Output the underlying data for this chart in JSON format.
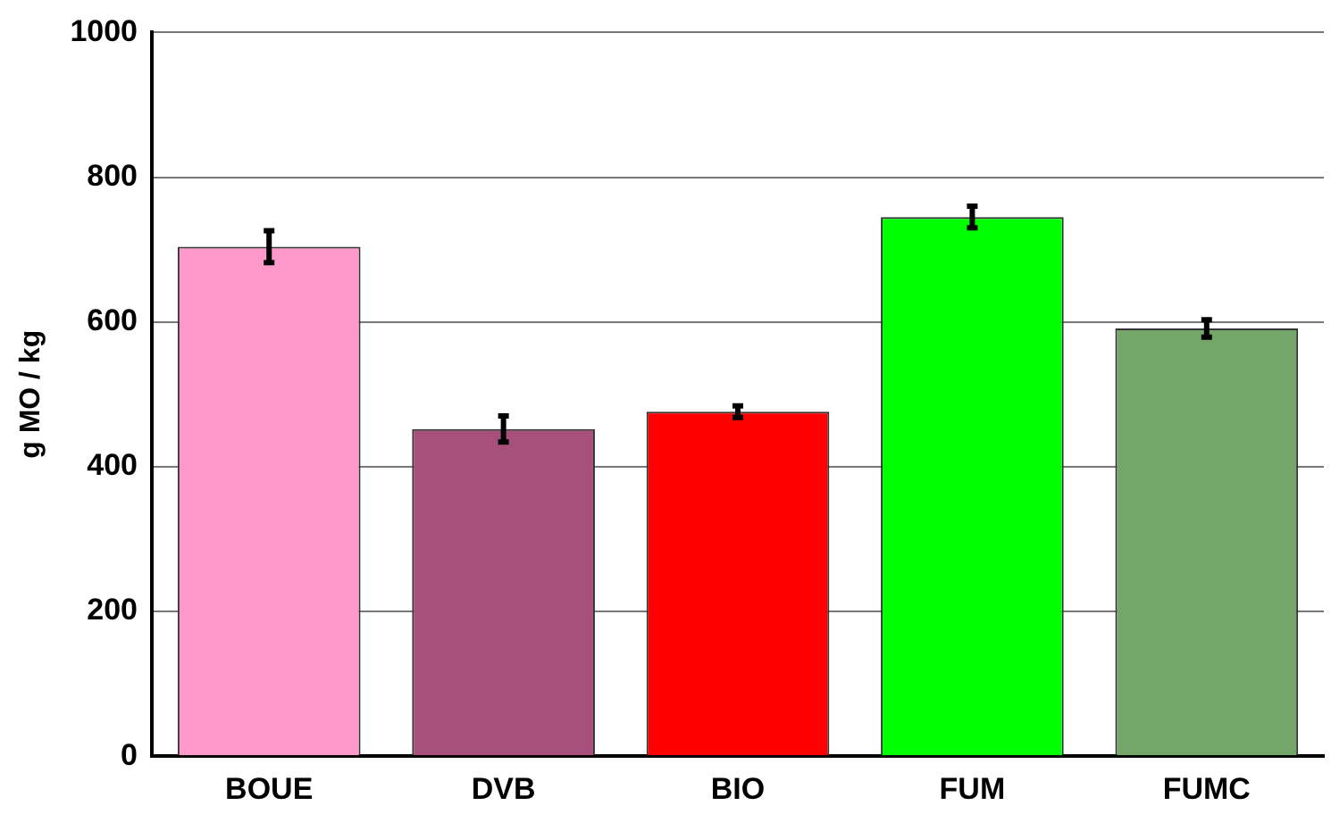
{
  "chart_data": {
    "type": "bar",
    "ylabel": "g MO / kg",
    "categories": [
      "BOUE",
      "DVB",
      "BIO",
      "FUM",
      "FUMC"
    ],
    "values": [
      704,
      452,
      476,
      745,
      591
    ],
    "errors": [
      22,
      18,
      8,
      15,
      12
    ],
    "colors": [
      "#ff99cc",
      "#a8507c",
      "#ff0000",
      "#00ff00",
      "#74a66a"
    ],
    "ylim": [
      0,
      1000
    ],
    "yticks": [
      0,
      200,
      400,
      600,
      800,
      1000
    ],
    "grid": "y",
    "legend": false
  }
}
